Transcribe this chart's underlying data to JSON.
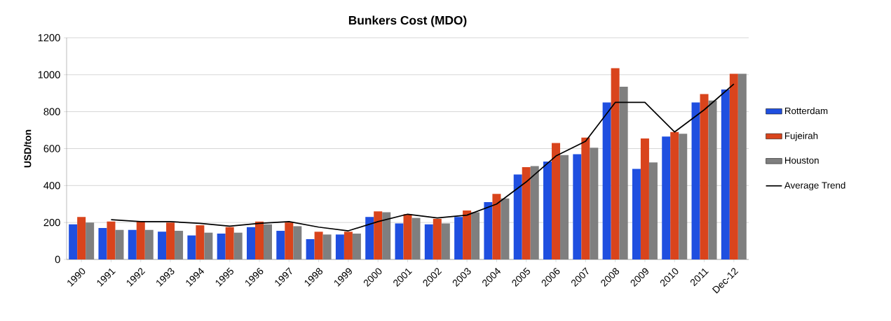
{
  "chart_data": {
    "type": "bar",
    "title": "**Bunkers Cost (MDO)**",
    "ylabel": "**USD/ton**",
    "categories": [
      "1990",
      "1991",
      "1992",
      "1993",
      "1994",
      "1995",
      "1996",
      "1997",
      "1998",
      "1999",
      "2000",
      "2001",
      "2002",
      "2003",
      "2004",
      "2005",
      "2006",
      "2007",
      "2008",
      "2009",
      "2010",
      "2011",
      "Dec-12"
    ],
    "series": [
      {
        "name": "Rotterdam",
        "color": "#1f4fe0",
        "values": [
          190,
          170,
          160,
          150,
          130,
          140,
          175,
          155,
          110,
          135,
          230,
          195,
          190,
          230,
          310,
          460,
          530,
          570,
          850,
          490,
          665,
          850,
          920
        ]
      },
      {
        "name": "Fujeirah",
        "color": "#d9441c",
        "values": [
          230,
          205,
          205,
          200,
          185,
          175,
          205,
          200,
          150,
          150,
          260,
          245,
          220,
          265,
          355,
          500,
          630,
          660,
          1035,
          655,
          690,
          895,
          1005
        ]
      },
      {
        "name": "Houston",
        "color": "#7f7f7f",
        "values": [
          200,
          160,
          160,
          155,
          145,
          145,
          190,
          180,
          135,
          140,
          255,
          225,
          195,
          255,
          330,
          505,
          565,
          605,
          935,
          525,
          680,
          860,
          1005
        ]
      },
      {
        "name": "Average Trend",
        "type": "line",
        "color": "#000000",
        "values": [
          null,
          215,
          205,
          205,
          195,
          180,
          195,
          205,
          175,
          155,
          205,
          245,
          225,
          240,
          300,
          420,
          560,
          640,
          850,
          850,
          690,
          810,
          950
        ]
      }
    ],
    "ylim": [
      0,
      1200
    ],
    "yticks": [
      0,
      200,
      400,
      600,
      800,
      1000,
      1200
    ],
    "grid": "y",
    "legend": "right"
  }
}
